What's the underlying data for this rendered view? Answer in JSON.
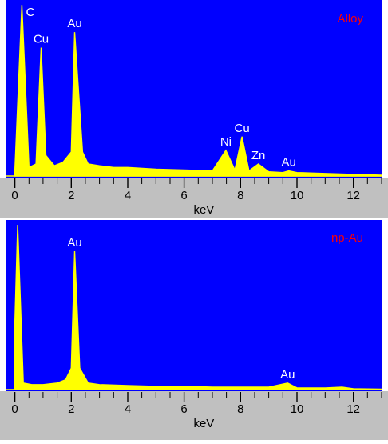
{
  "chart_data": [
    {
      "type": "area",
      "title": "Alloy",
      "xlabel": "keV",
      "ylabel": "",
      "xlim": [
        -0.3,
        13
      ],
      "x_ticks": [
        "0",
        "2",
        "4",
        "6",
        "8",
        "10",
        "12"
      ],
      "grid": false,
      "legend": "none",
      "colors": {
        "plot_background": "#0000ff",
        "spectrum": "#ffff00",
        "label": "#ffffff",
        "title": "#ff0000",
        "axis_band": "#c0c0c0"
      },
      "peak_labels": [
        {
          "text": "C",
          "x": 0.28,
          "y": 100
        },
        {
          "text": "Cu",
          "x": 0.93,
          "y": 75
        },
        {
          "text": "Au",
          "x": 2.12,
          "y": 84
        },
        {
          "text": "Ni",
          "x": 7.48,
          "y": 15
        },
        {
          "text": "Cu",
          "x": 8.05,
          "y": 23
        },
        {
          "text": "Zn",
          "x": 8.63,
          "y": 7
        },
        {
          "text": "Au",
          "x": 9.71,
          "y": 3
        }
      ],
      "series": [
        {
          "x": [
            0.0,
            0.25,
            0.5,
            0.75,
            0.93,
            1.1,
            1.4,
            1.7,
            2.0,
            2.12,
            2.4,
            2.6,
            3.0,
            3.5,
            4.0,
            5.0,
            6.0,
            7.0,
            7.48,
            7.8,
            8.05,
            8.3,
            8.63,
            9.0,
            9.5,
            9.71,
            10.0,
            11.0,
            12.0,
            13.0
          ],
          "y": [
            3,
            100,
            5,
            7,
            75,
            12,
            6,
            8,
            14,
            84,
            14,
            7,
            6,
            5,
            5,
            4,
            3.5,
            3,
            15,
            3.5,
            23,
            3,
            7,
            2.5,
            2,
            3,
            2,
            1.5,
            1,
            0.5
          ]
        }
      ]
    },
    {
      "type": "area",
      "title": "np-Au",
      "xlabel": "keV",
      "ylabel": "",
      "xlim": [
        -0.3,
        13
      ],
      "x_ticks": [
        "0",
        "2",
        "4",
        "6",
        "8",
        "10",
        "12"
      ],
      "grid": false,
      "legend": "none",
      "colors": {
        "plot_background": "#0000ff",
        "spectrum": "#ffff00",
        "label": "#ffffff",
        "title": "#ff0000",
        "axis_band": "#c0c0c0"
      },
      "peak_labels": [
        {
          "text": "Au",
          "x": 2.12,
          "y": 84
        },
        {
          "text": "Au",
          "x": 9.67,
          "y": 4
        }
      ],
      "series": [
        {
          "x": [
            0.0,
            0.1,
            0.3,
            0.6,
            1.0,
            1.5,
            1.8,
            2.0,
            2.12,
            2.3,
            2.6,
            3.0,
            4.0,
            5.0,
            6.0,
            7.0,
            8.0,
            9.0,
            9.67,
            10.0,
            11.0,
            11.6,
            12.0,
            13.0
          ],
          "y": [
            40,
            100,
            4,
            3,
            3,
            4,
            6,
            13,
            84,
            13,
            4,
            3,
            2.5,
            2,
            2,
            1.5,
            1.5,
            1.5,
            4,
            1,
            1,
            1.5,
            0.5,
            0.3
          ]
        }
      ]
    }
  ]
}
